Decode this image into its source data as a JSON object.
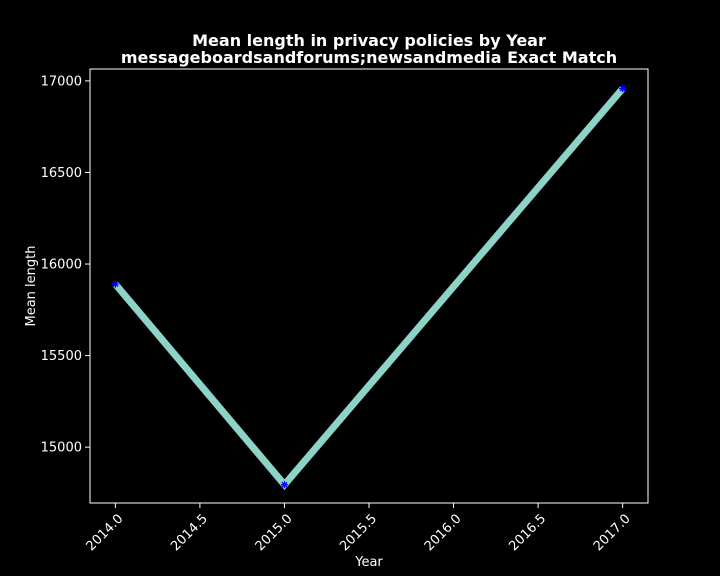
{
  "chart_data": {
    "type": "line",
    "title": "Mean length in privacy policies by Year",
    "subtitle": "messageboardsandforums;newsandmedia Exact Match",
    "xlabel": "Year",
    "ylabel": "Mean length",
    "x": [
      2014,
      2015,
      2017
    ],
    "series": [
      {
        "values": [
          15890,
          14795,
          16958
        ]
      }
    ],
    "xlim": [
      2013.85,
      2017.15
    ],
    "ylim": [
      14695,
      17065
    ],
    "xticks": [
      2014.0,
      2014.5,
      2015.0,
      2015.5,
      2016.0,
      2016.5,
      2017.0
    ],
    "xtick_labels": [
      "2014.0",
      "2014.5",
      "2015.0",
      "2015.5",
      "2016.0",
      "2016.5",
      "2017.0"
    ],
    "yticks": [
      15000,
      15500,
      16000,
      16500,
      17000
    ],
    "ytick_labels": [
      "15000",
      "15500",
      "16000",
      "16500",
      "17000"
    ],
    "grid": false,
    "colors": {
      "background": "#000000",
      "line": "#8dd3c7",
      "marker": "#0000ff",
      "axes": "#ffffff",
      "text": "#ffffff"
    }
  }
}
